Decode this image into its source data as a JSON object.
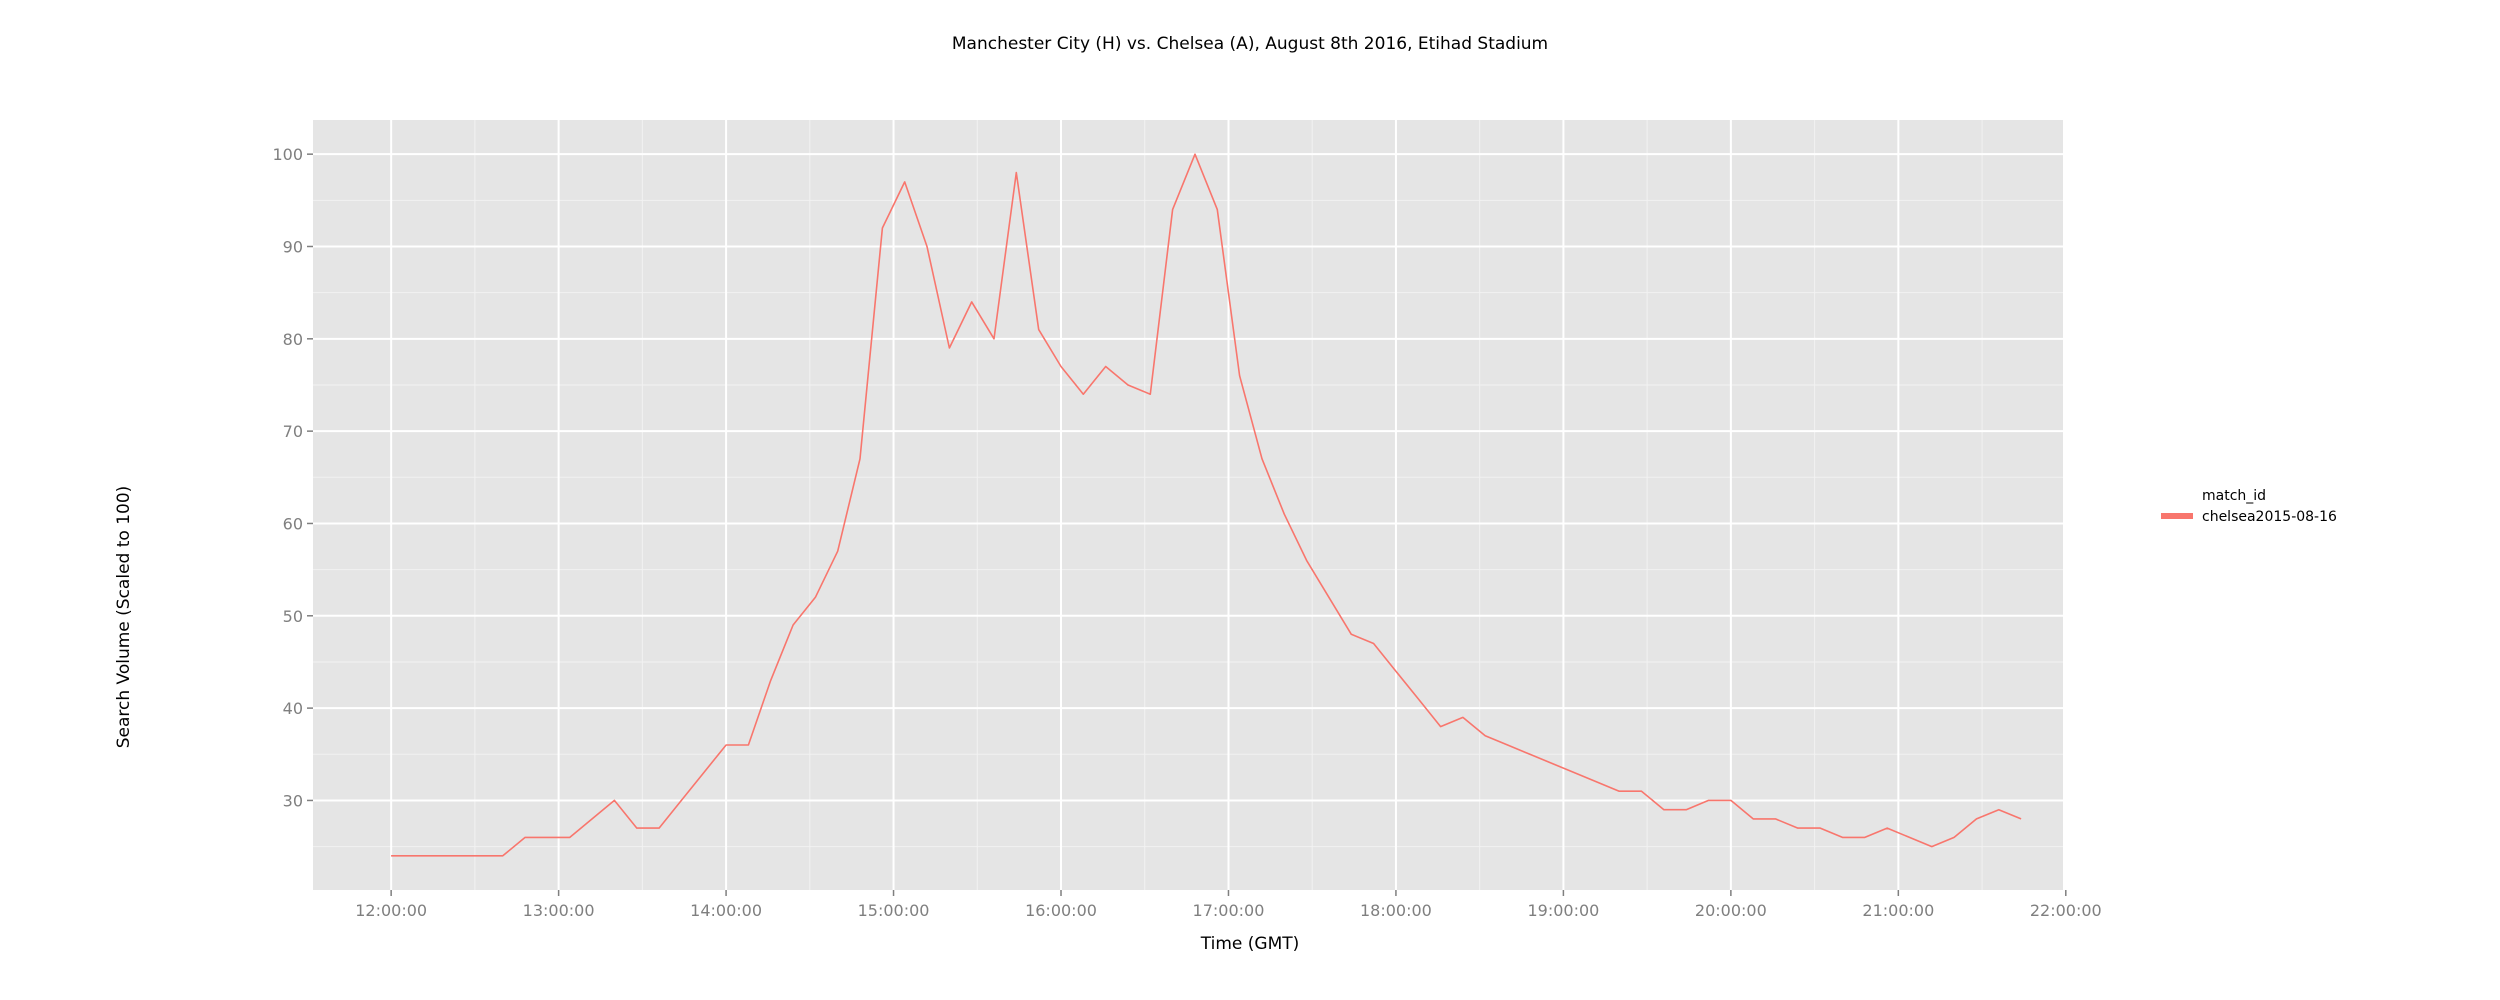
{
  "chart_data": {
    "type": "line",
    "title": "Manchester City (H) vs. Chelsea (A), August 8th 2016, Etihad Stadium",
    "xlabel": "Time (GMT)",
    "ylabel": "Search Volume (Scaled to 100)",
    "x_ticks": [
      "12:00:00",
      "13:00:00",
      "14:00:00",
      "15:00:00",
      "16:00:00",
      "17:00:00",
      "18:00:00",
      "19:00:00",
      "20:00:00",
      "21:00:00",
      "22:00:00"
    ],
    "y_ticks": [
      30,
      40,
      50,
      60,
      70,
      80,
      90,
      100
    ],
    "xlim": [
      "11:32:00",
      "21:59:00"
    ],
    "ylim": [
      20.3,
      103.7
    ],
    "grid": true,
    "legend": {
      "title": "match_id",
      "position": "right"
    },
    "colors": {
      "series": "#f8766d",
      "panel": "#e5e5e5",
      "grid": "#ffffff"
    },
    "series": [
      {
        "name": "chelsea2015-08-16",
        "x": [
          "12:00",
          "12:08",
          "12:16",
          "12:24",
          "12:32",
          "12:40",
          "12:48",
          "12:56",
          "13:04",
          "13:12",
          "13:20",
          "13:28",
          "13:36",
          "13:44",
          "13:52",
          "14:00",
          "14:08",
          "14:16",
          "14:24",
          "14:32",
          "14:40",
          "14:48",
          "14:56",
          "15:04",
          "15:12",
          "15:20",
          "15:28",
          "15:36",
          "15:44",
          "15:52",
          "16:00",
          "16:08",
          "16:16",
          "16:24",
          "16:32",
          "16:40",
          "16:48",
          "16:56",
          "17:04",
          "17:12",
          "17:20",
          "17:28",
          "17:36",
          "17:44",
          "17:52",
          "18:00",
          "18:08",
          "18:16",
          "18:24",
          "18:32",
          "18:40",
          "18:48",
          "18:56",
          "19:04",
          "19:12",
          "19:20",
          "19:28",
          "19:36",
          "19:44",
          "19:52",
          "20:00",
          "20:08",
          "20:16",
          "20:24",
          "20:32",
          "20:40",
          "20:48",
          "20:56",
          "21:04",
          "21:12",
          "21:20",
          "21:28",
          "21:36",
          "21:44"
        ],
        "values": [
          24,
          24,
          24,
          24,
          24,
          24,
          26,
          26,
          26,
          28,
          30,
          27,
          27,
          30,
          33,
          36,
          36,
          43,
          49,
          52,
          57,
          67,
          92,
          97,
          90,
          79,
          84,
          80,
          98,
          81,
          77,
          74,
          77,
          75,
          74,
          94,
          100,
          94,
          76,
          67,
          61,
          56,
          52,
          48,
          47,
          44,
          41,
          38,
          39,
          37,
          36,
          35,
          34,
          33,
          32,
          31,
          31,
          29,
          29,
          30,
          30,
          28,
          28,
          27,
          27,
          26,
          26,
          27,
          26,
          25,
          26,
          28,
          29,
          28
        ]
      }
    ]
  }
}
